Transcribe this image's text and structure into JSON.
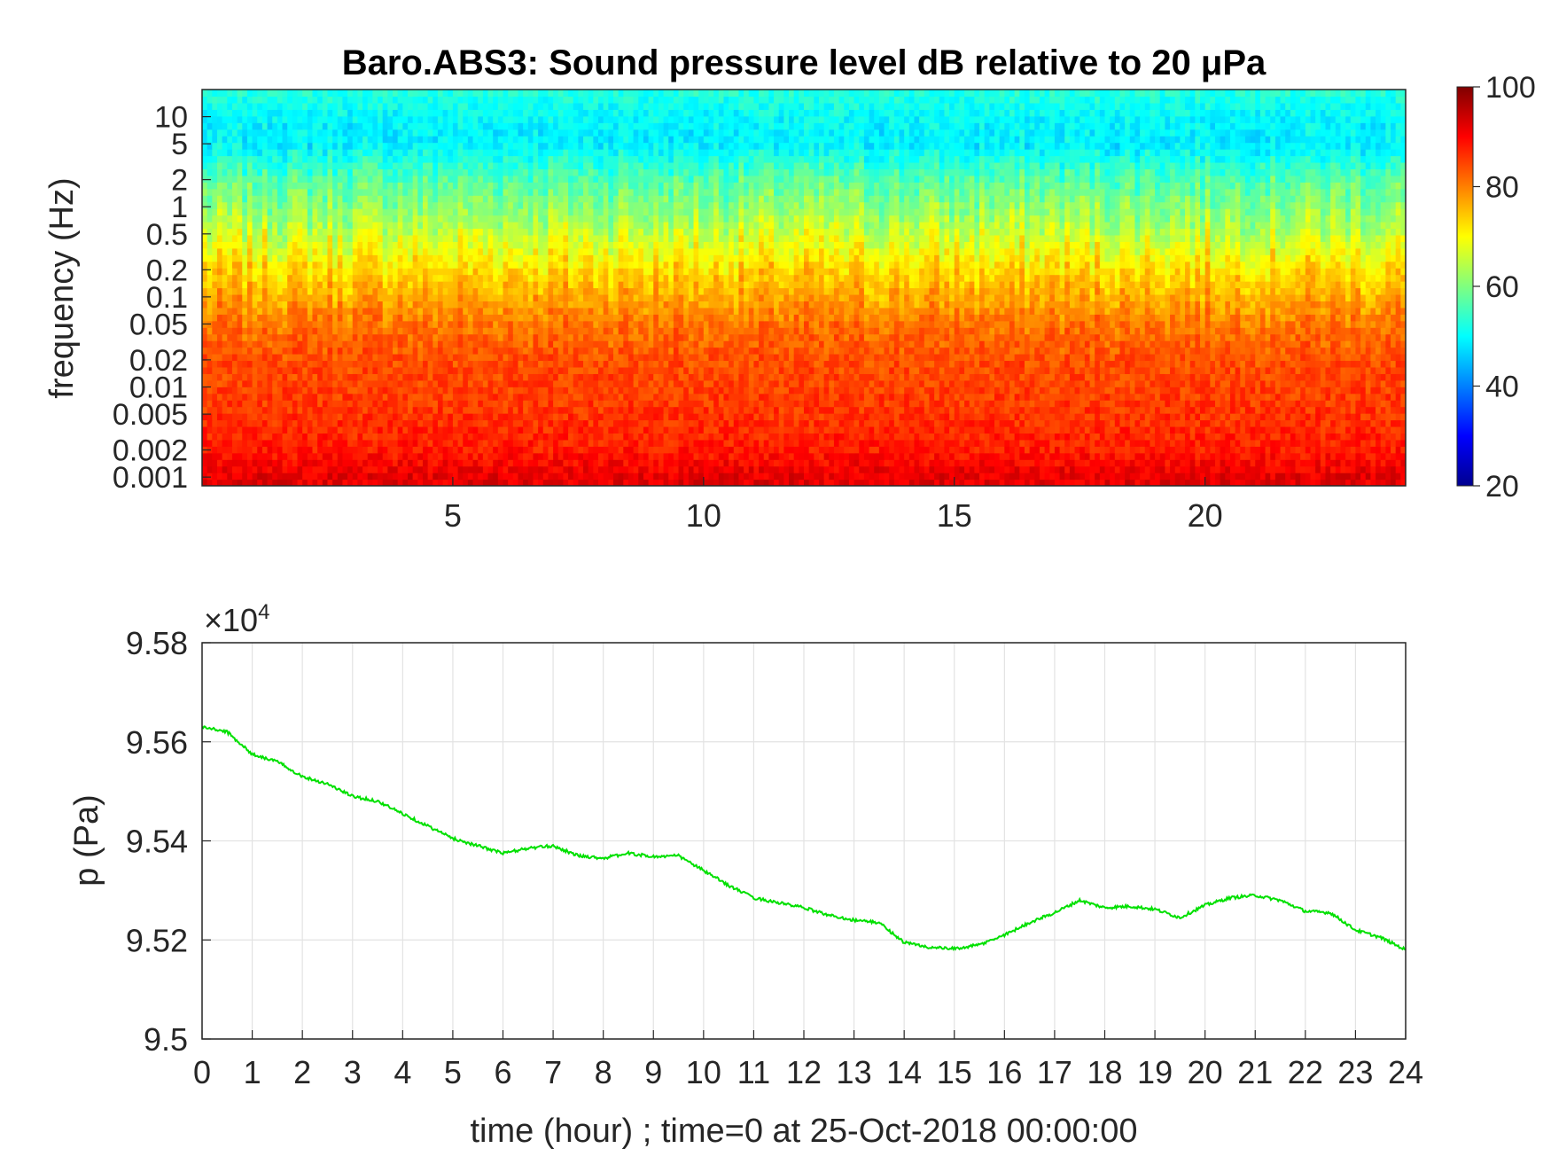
{
  "chart_data": [
    {
      "type": "heatmap",
      "title": "Baro.ABS3: Sound pressure level dB relative to 20 μPa",
      "xlabel": "",
      "ylabel": "frequency (Hz)",
      "y_scale": "log",
      "x_ticks": [
        "5",
        "10",
        "15",
        "20"
      ],
      "x_tick_values": [
        5,
        10,
        15,
        20
      ],
      "xlim": [
        0,
        24
      ],
      "y_ticks": [
        "10",
        "5",
        "2",
        "1",
        "0.5",
        "0.2",
        "0.1",
        "0.05",
        "0.02",
        "0.01",
        "0.005",
        "0.002",
        "0.001"
      ],
      "y_tick_values": [
        10,
        5,
        2,
        1,
        0.5,
        0.2,
        0.1,
        0.05,
        0.02,
        0.01,
        0.005,
        0.002,
        0.001
      ],
      "ylim": [
        0.0008,
        20
      ],
      "colorbar": {
        "colormap": "jet",
        "ticks": [
          "20",
          "40",
          "60",
          "80",
          "100"
        ],
        "tick_values": [
          20,
          40,
          60,
          80,
          100
        ],
        "range": [
          20,
          100
        ],
        "placement": "right"
      },
      "approx_level_profile": {
        "frequency_hz": [
          0.001,
          0.002,
          0.005,
          0.01,
          0.02,
          0.05,
          0.1,
          0.2,
          0.5,
          1,
          2,
          5,
          10,
          20
        ],
        "level_db": [
          92,
          88,
          86,
          85,
          84,
          81,
          77,
          73,
          66,
          61,
          57,
          49,
          50,
          53
        ]
      },
      "grid": false
    },
    {
      "type": "line",
      "xlabel": "time (hour) ; time=0 at 25-Oct-2018 00:00:00",
      "ylabel": "p (Pa)",
      "y_exponent_label": "×10",
      "y_exponent_power": "4",
      "xlim": [
        0,
        24
      ],
      "ylim": [
        95000,
        95800
      ],
      "x_ticks": [
        "0",
        "1",
        "2",
        "3",
        "4",
        "5",
        "6",
        "7",
        "8",
        "9",
        "10",
        "11",
        "12",
        "13",
        "14",
        "15",
        "16",
        "17",
        "18",
        "19",
        "20",
        "21",
        "22",
        "23",
        "24"
      ],
      "y_ticks": [
        "9.5",
        "9.52",
        "9.54",
        "9.56",
        "9.58"
      ],
      "y_tick_values": [
        95000,
        95200,
        95400,
        95600,
        95800
      ],
      "grid": true,
      "series": [
        {
          "color": "#00e000",
          "x": [
            0,
            0.5,
            1,
            1.5,
            2,
            2.5,
            3,
            3.5,
            4,
            4.5,
            5,
            5.5,
            6,
            6.5,
            7,
            7.5,
            8,
            8.5,
            9,
            9.5,
            10,
            10.5,
            11,
            11.5,
            12,
            12.5,
            13,
            13.5,
            14,
            14.5,
            15,
            15.5,
            16,
            16.5,
            17,
            17.5,
            18,
            18.5,
            19,
            19.5,
            20,
            20.5,
            21,
            21.5,
            22,
            22.5,
            23,
            23.5,
            24
          ],
          "y": [
            95630,
            95620,
            95575,
            95560,
            95530,
            95515,
            95490,
            95480,
            95455,
            95430,
            95405,
            95390,
            95375,
            95385,
            95390,
            95370,
            95365,
            95375,
            95368,
            95370,
            95340,
            95310,
            95285,
            95275,
            95265,
            95250,
            95240,
            95235,
            95195,
            95185,
            95182,
            95190,
            95210,
            95235,
            95255,
            95280,
            95265,
            95268,
            95262,
            95245,
            95270,
            95285,
            95290,
            95280,
            95258,
            95255,
            95220,
            95205,
            95180
          ]
        }
      ]
    }
  ]
}
